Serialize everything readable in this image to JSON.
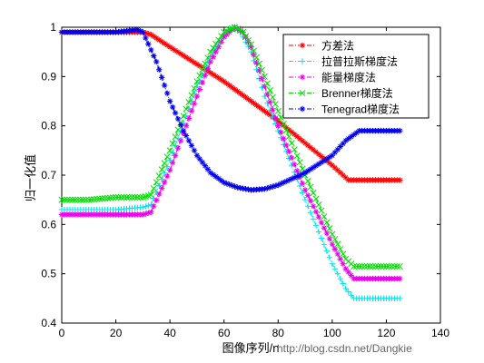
{
  "chart_data": {
    "type": "line",
    "title": "",
    "xlabel": "图像序列/n",
    "ylabel": "归一化值",
    "xlim": [
      0,
      140
    ],
    "ylim": [
      0.4,
      1.0
    ],
    "xticks": [
      "0",
      "20",
      "40",
      "60",
      "80",
      "100",
      "120",
      "140"
    ],
    "yticks": [
      "0.4",
      "0.5",
      "0.6",
      "0.7",
      "0.8",
      "0.9",
      "1"
    ],
    "grid": false,
    "legend_position": "top-right",
    "series": [
      {
        "name": "方差法",
        "color": "#ff0000",
        "marker": "star",
        "points": [
          [
            0,
            0.99
          ],
          [
            10,
            0.99
          ],
          [
            20,
            0.99
          ],
          [
            30,
            0.99
          ],
          [
            33,
            0.985
          ],
          [
            40,
            0.96
          ],
          [
            50,
            0.925
          ],
          [
            60,
            0.89
          ],
          [
            65,
            0.87
          ],
          [
            70,
            0.85
          ],
          [
            80,
            0.81
          ],
          [
            90,
            0.765
          ],
          [
            100,
            0.72
          ],
          [
            106,
            0.69
          ],
          [
            110,
            0.69
          ],
          [
            120,
            0.69
          ],
          [
            125,
            0.69
          ]
        ]
      },
      {
        "name": "拉普拉斯梯度法",
        "color": "#00e5ee",
        "marker": "plus",
        "points": [
          [
            0,
            0.63
          ],
          [
            10,
            0.63
          ],
          [
            20,
            0.63
          ],
          [
            30,
            0.635
          ],
          [
            33,
            0.64
          ],
          [
            40,
            0.73
          ],
          [
            50,
            0.88
          ],
          [
            55,
            0.94
          ],
          [
            60,
            0.985
          ],
          [
            63,
            1.0
          ],
          [
            66,
            0.99
          ],
          [
            70,
            0.95
          ],
          [
            75,
            0.86
          ],
          [
            80,
            0.79
          ],
          [
            90,
            0.65
          ],
          [
            100,
            0.52
          ],
          [
            105,
            0.47
          ],
          [
            108,
            0.45
          ],
          [
            115,
            0.45
          ],
          [
            125,
            0.45
          ]
        ]
      },
      {
        "name": "能量梯度法",
        "color": "#ee00ee",
        "marker": "star",
        "points": [
          [
            0,
            0.62
          ],
          [
            10,
            0.62
          ],
          [
            20,
            0.62
          ],
          [
            30,
            0.62
          ],
          [
            33,
            0.625
          ],
          [
            40,
            0.71
          ],
          [
            50,
            0.86
          ],
          [
            55,
            0.93
          ],
          [
            60,
            0.98
          ],
          [
            64,
            1.0
          ],
          [
            67,
            0.99
          ],
          [
            70,
            0.96
          ],
          [
            75,
            0.88
          ],
          [
            80,
            0.8
          ],
          [
            90,
            0.67
          ],
          [
            100,
            0.56
          ],
          [
            105,
            0.51
          ],
          [
            108,
            0.49
          ],
          [
            115,
            0.49
          ],
          [
            125,
            0.49
          ]
        ]
      },
      {
        "name": "Brenner梯度法",
        "color": "#00dd00",
        "marker": "x",
        "points": [
          [
            0,
            0.65
          ],
          [
            10,
            0.65
          ],
          [
            20,
            0.655
          ],
          [
            30,
            0.655
          ],
          [
            33,
            0.66
          ],
          [
            40,
            0.75
          ],
          [
            50,
            0.89
          ],
          [
            55,
            0.95
          ],
          [
            60,
            0.99
          ],
          [
            64,
            1.0
          ],
          [
            67,
            0.99
          ],
          [
            70,
            0.965
          ],
          [
            75,
            0.9
          ],
          [
            80,
            0.83
          ],
          [
            90,
            0.7
          ],
          [
            100,
            0.58
          ],
          [
            105,
            0.53
          ],
          [
            108,
            0.515
          ],
          [
            115,
            0.515
          ],
          [
            125,
            0.515
          ]
        ]
      },
      {
        "name": "Tenegrad梯度法",
        "color": "#0000ee",
        "marker": "star",
        "points": [
          [
            0,
            0.99
          ],
          [
            10,
            0.99
          ],
          [
            20,
            0.99
          ],
          [
            28,
            0.995
          ],
          [
            30,
            0.99
          ],
          [
            35,
            0.93
          ],
          [
            40,
            0.85
          ],
          [
            45,
            0.79
          ],
          [
            50,
            0.74
          ],
          [
            55,
            0.705
          ],
          [
            60,
            0.685
          ],
          [
            65,
            0.675
          ],
          [
            70,
            0.67
          ],
          [
            75,
            0.672
          ],
          [
            80,
            0.68
          ],
          [
            90,
            0.705
          ],
          [
            100,
            0.74
          ],
          [
            105,
            0.77
          ],
          [
            110,
            0.79
          ],
          [
            115,
            0.79
          ],
          [
            125,
            0.79
          ]
        ]
      }
    ]
  },
  "watermark": "http://blog.csdn.net/Dangkie"
}
